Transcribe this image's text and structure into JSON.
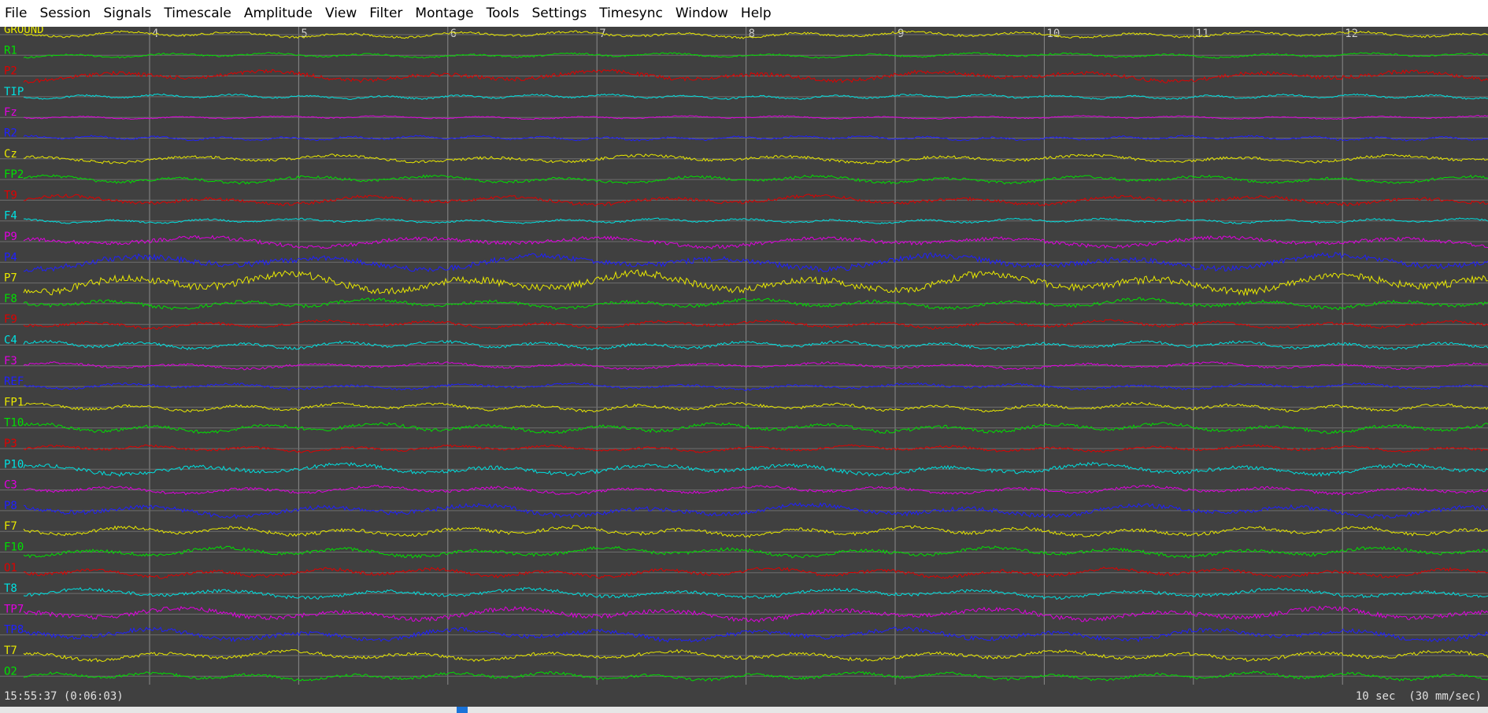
{
  "menu": [
    "File",
    "Session",
    "Signals",
    "Timescale",
    "Amplitude",
    "View",
    "Filter",
    "Montage",
    "Tools",
    "Settings",
    "Timesync",
    "Window",
    "Help"
  ],
  "ticks": [
    "4",
    "5",
    "6",
    "7",
    "8",
    "9",
    "10",
    "11",
    "12"
  ],
  "channels": [
    {
      "label": "GROUND",
      "color": "#e8e800"
    },
    {
      "label": "R1",
      "color": "#00e000"
    },
    {
      "label": "P2",
      "color": "#e00000"
    },
    {
      "label": "TIP",
      "color": "#00e0e0"
    },
    {
      "label": "Fz",
      "color": "#e000e0"
    },
    {
      "label": "R2",
      "color": "#2020ff"
    },
    {
      "label": "Cz",
      "color": "#e8e800"
    },
    {
      "label": "FP2",
      "color": "#00e000"
    },
    {
      "label": "T9",
      "color": "#e00000"
    },
    {
      "label": "F4",
      "color": "#00e0e0"
    },
    {
      "label": "P9",
      "color": "#e000e0"
    },
    {
      "label": "P4",
      "color": "#2020ff"
    },
    {
      "label": "P7",
      "color": "#e8e800"
    },
    {
      "label": "F8",
      "color": "#00e000"
    },
    {
      "label": "F9",
      "color": "#e00000"
    },
    {
      "label": "C4",
      "color": "#00e0e0"
    },
    {
      "label": "F3",
      "color": "#e000e0"
    },
    {
      "label": "REF",
      "color": "#2020ff"
    },
    {
      "label": "FP1",
      "color": "#e8e800"
    },
    {
      "label": "T10",
      "color": "#00e000"
    },
    {
      "label": "P3",
      "color": "#e00000"
    },
    {
      "label": "P10",
      "color": "#00e0e0"
    },
    {
      "label": "C3",
      "color": "#e000e0"
    },
    {
      "label": "P8",
      "color": "#2020ff"
    },
    {
      "label": "F7",
      "color": "#e8e800"
    },
    {
      "label": "F10",
      "color": "#00e000"
    },
    {
      "label": "O1",
      "color": "#e00000"
    },
    {
      "label": "T8",
      "color": "#00e0e0"
    },
    {
      "label": "TP7",
      "color": "#e000e0"
    },
    {
      "label": "TP8",
      "color": "#2020ff"
    },
    {
      "label": "T7",
      "color": "#e8e800"
    },
    {
      "label": "O2",
      "color": "#00e000"
    }
  ],
  "status": {
    "clock": "15:55:37 (0:06:03)",
    "timescale": "10 sec  (30 mm/sec)"
  }
}
